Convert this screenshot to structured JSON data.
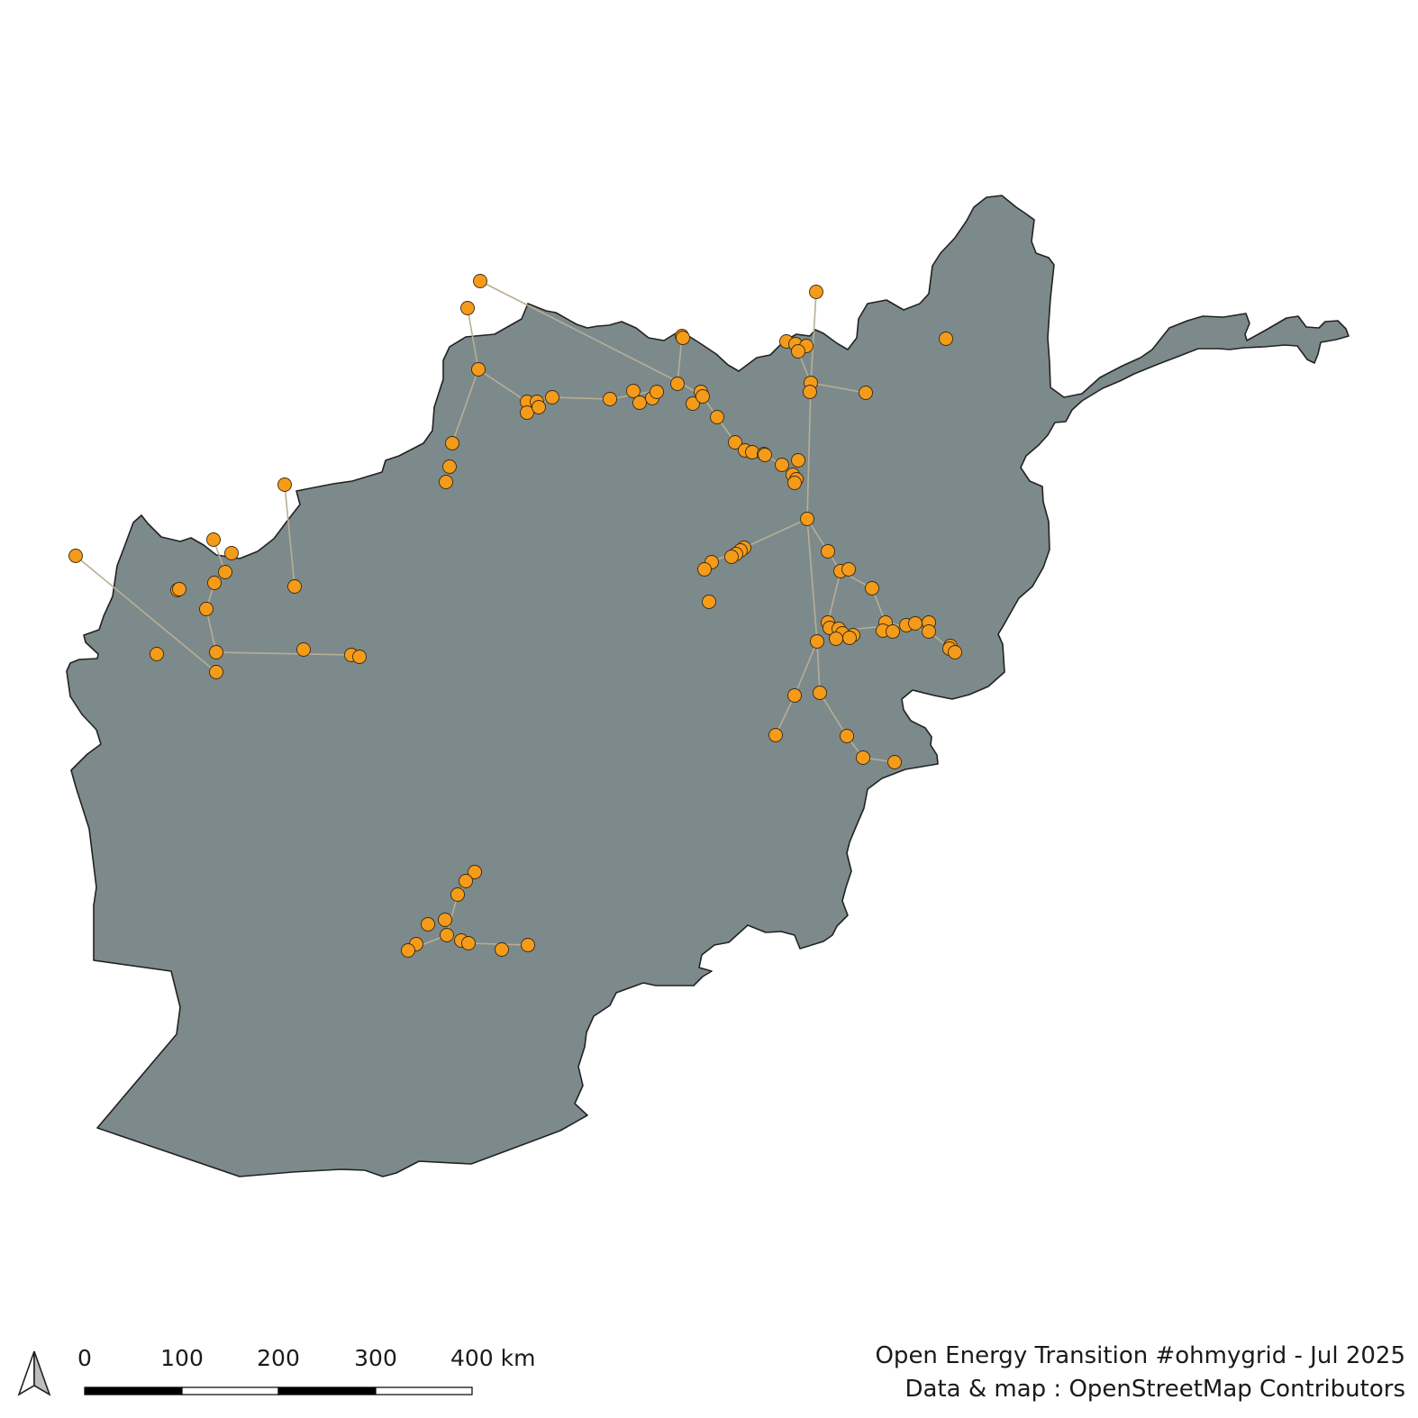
{
  "map": {
    "regions": [
      "country-outline"
    ],
    "colors": {
      "country_fill": "#7d8a8c",
      "country_border": "#222222",
      "line": "#b8ae94",
      "substation": "#f59b1a"
    },
    "layers": [
      "transmission-lines",
      "substations"
    ]
  },
  "north_arrow": {
    "icon": "north-arrow-icon"
  },
  "scale_bar": {
    "labels": [
      "0",
      "100",
      "200",
      "300",
      "400 km"
    ]
  },
  "credits": {
    "line1": "Open Energy Transition #ohmygrid - Jul 2025",
    "line2": "Data & map : OpenStreetMap Contributors"
  }
}
